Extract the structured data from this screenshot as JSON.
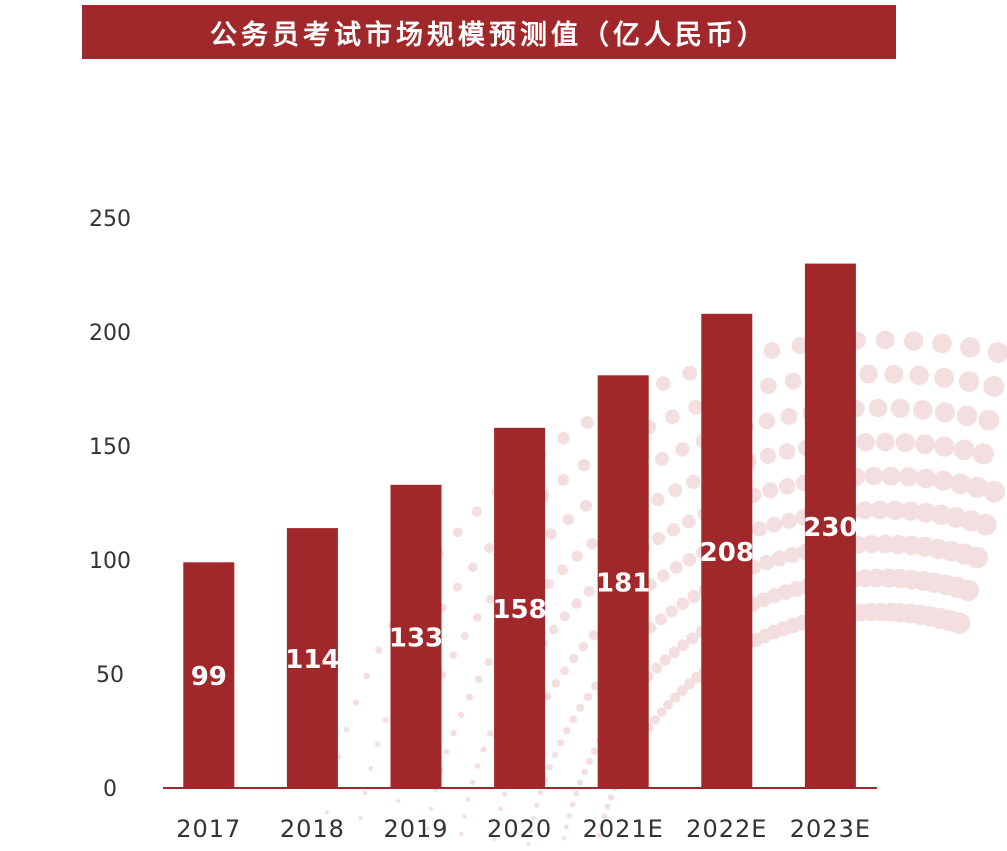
{
  "colors": {
    "bar": "#a0282a",
    "title_bg": "#a0282a",
    "title_text": "#ffffff",
    "label": "#ffffff",
    "axis_text": "#333333",
    "deco": "#f4dfe0"
  },
  "chart_data": {
    "type": "bar",
    "title": "公务员考试市场规模预测值（亿人民币）",
    "categories": [
      "2017",
      "2018",
      "2019",
      "2020",
      "2021E",
      "2022E",
      "2023E"
    ],
    "values": [
      99,
      114,
      133,
      158,
      181,
      208,
      230
    ],
    "xlabel": "",
    "ylabel": "",
    "ylim": [
      0,
      250
    ],
    "yticks": [
      0,
      50,
      100,
      150,
      200,
      250
    ],
    "grid": false,
    "legend": "none"
  }
}
